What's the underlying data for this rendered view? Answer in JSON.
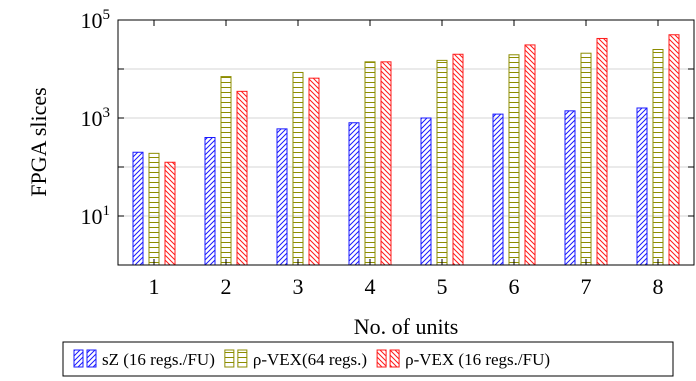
{
  "chart_data": {
    "type": "bar",
    "xlabel": "No. of units",
    "ylabel": "FPGA slices",
    "yscale": "log",
    "ylim": [
      1,
      100000
    ],
    "yticks": [
      {
        "value": 10,
        "base": "10",
        "exp": "1"
      },
      {
        "value": 1000,
        "base": "10",
        "exp": "3"
      },
      {
        "value": 100000,
        "base": "10",
        "exp": "5"
      }
    ],
    "categories": [
      "1",
      "2",
      "3",
      "4",
      "5",
      "6",
      "7",
      "8"
    ],
    "grid": "horizontal",
    "legend": "bottom",
    "series": [
      {
        "name": "sZ (16 regs./FU)",
        "color": "#1a1aff",
        "pattern": "north-east-lines",
        "values": [
          200,
          400,
          600,
          800,
          1000,
          1200,
          1400,
          1600
        ]
      },
      {
        "name": "ρ-VEX(64 regs.)",
        "color": "#8c8c00",
        "pattern": "horizontal-lines",
        "values": [
          190,
          7000,
          8500,
          14000,
          15000,
          19500,
          21000,
          25000
        ]
      },
      {
        "name": "ρ-VEX (16 regs./FU)",
        "color": "#ff1a1a",
        "pattern": "north-west-lines",
        "values": [
          125,
          3500,
          6500,
          14000,
          20000,
          31000,
          42000,
          50000
        ]
      }
    ]
  }
}
